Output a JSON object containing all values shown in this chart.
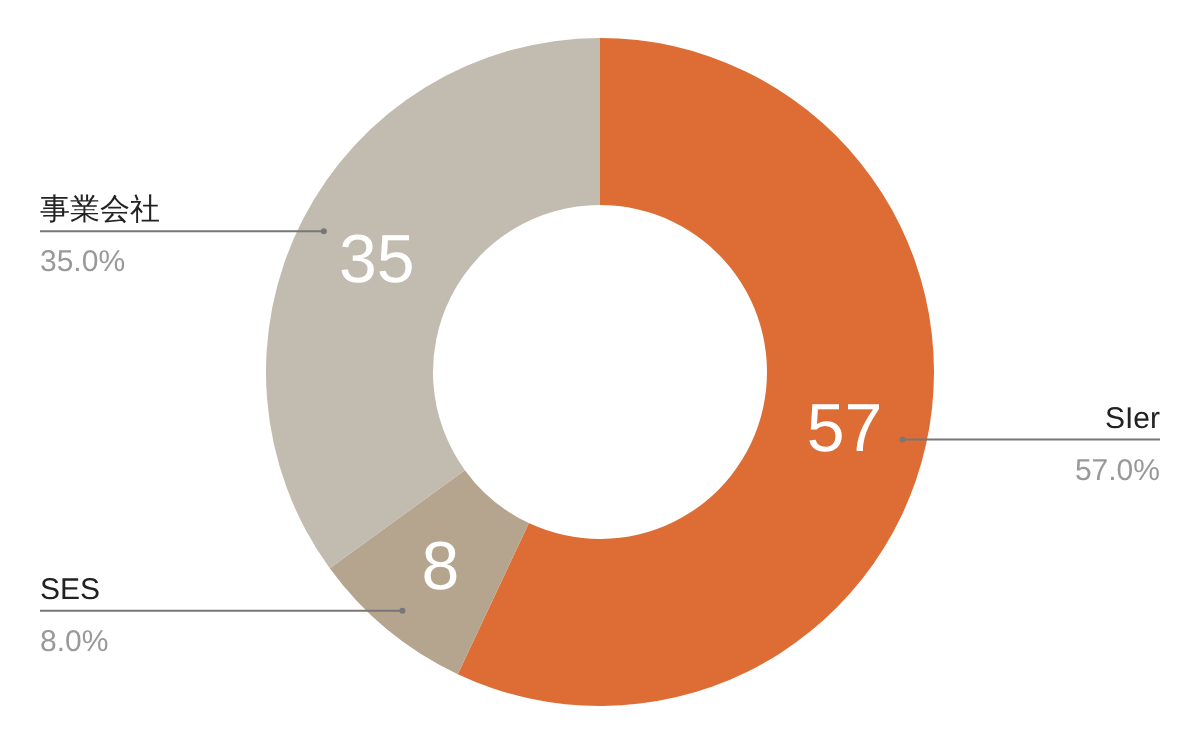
{
  "chart_data": {
    "type": "donut",
    "categories": [
      "SIer",
      "SES",
      "事業会社"
    ],
    "values": [
      57,
      8,
      35
    ],
    "colors": [
      "#dd6d34",
      "#b5a58e",
      "#c2bbaf"
    ],
    "value_labels": [
      "57",
      "8",
      "35"
    ],
    "annotations": [
      "57.0%",
      "8.0%",
      "35.0%"
    ]
  }
}
